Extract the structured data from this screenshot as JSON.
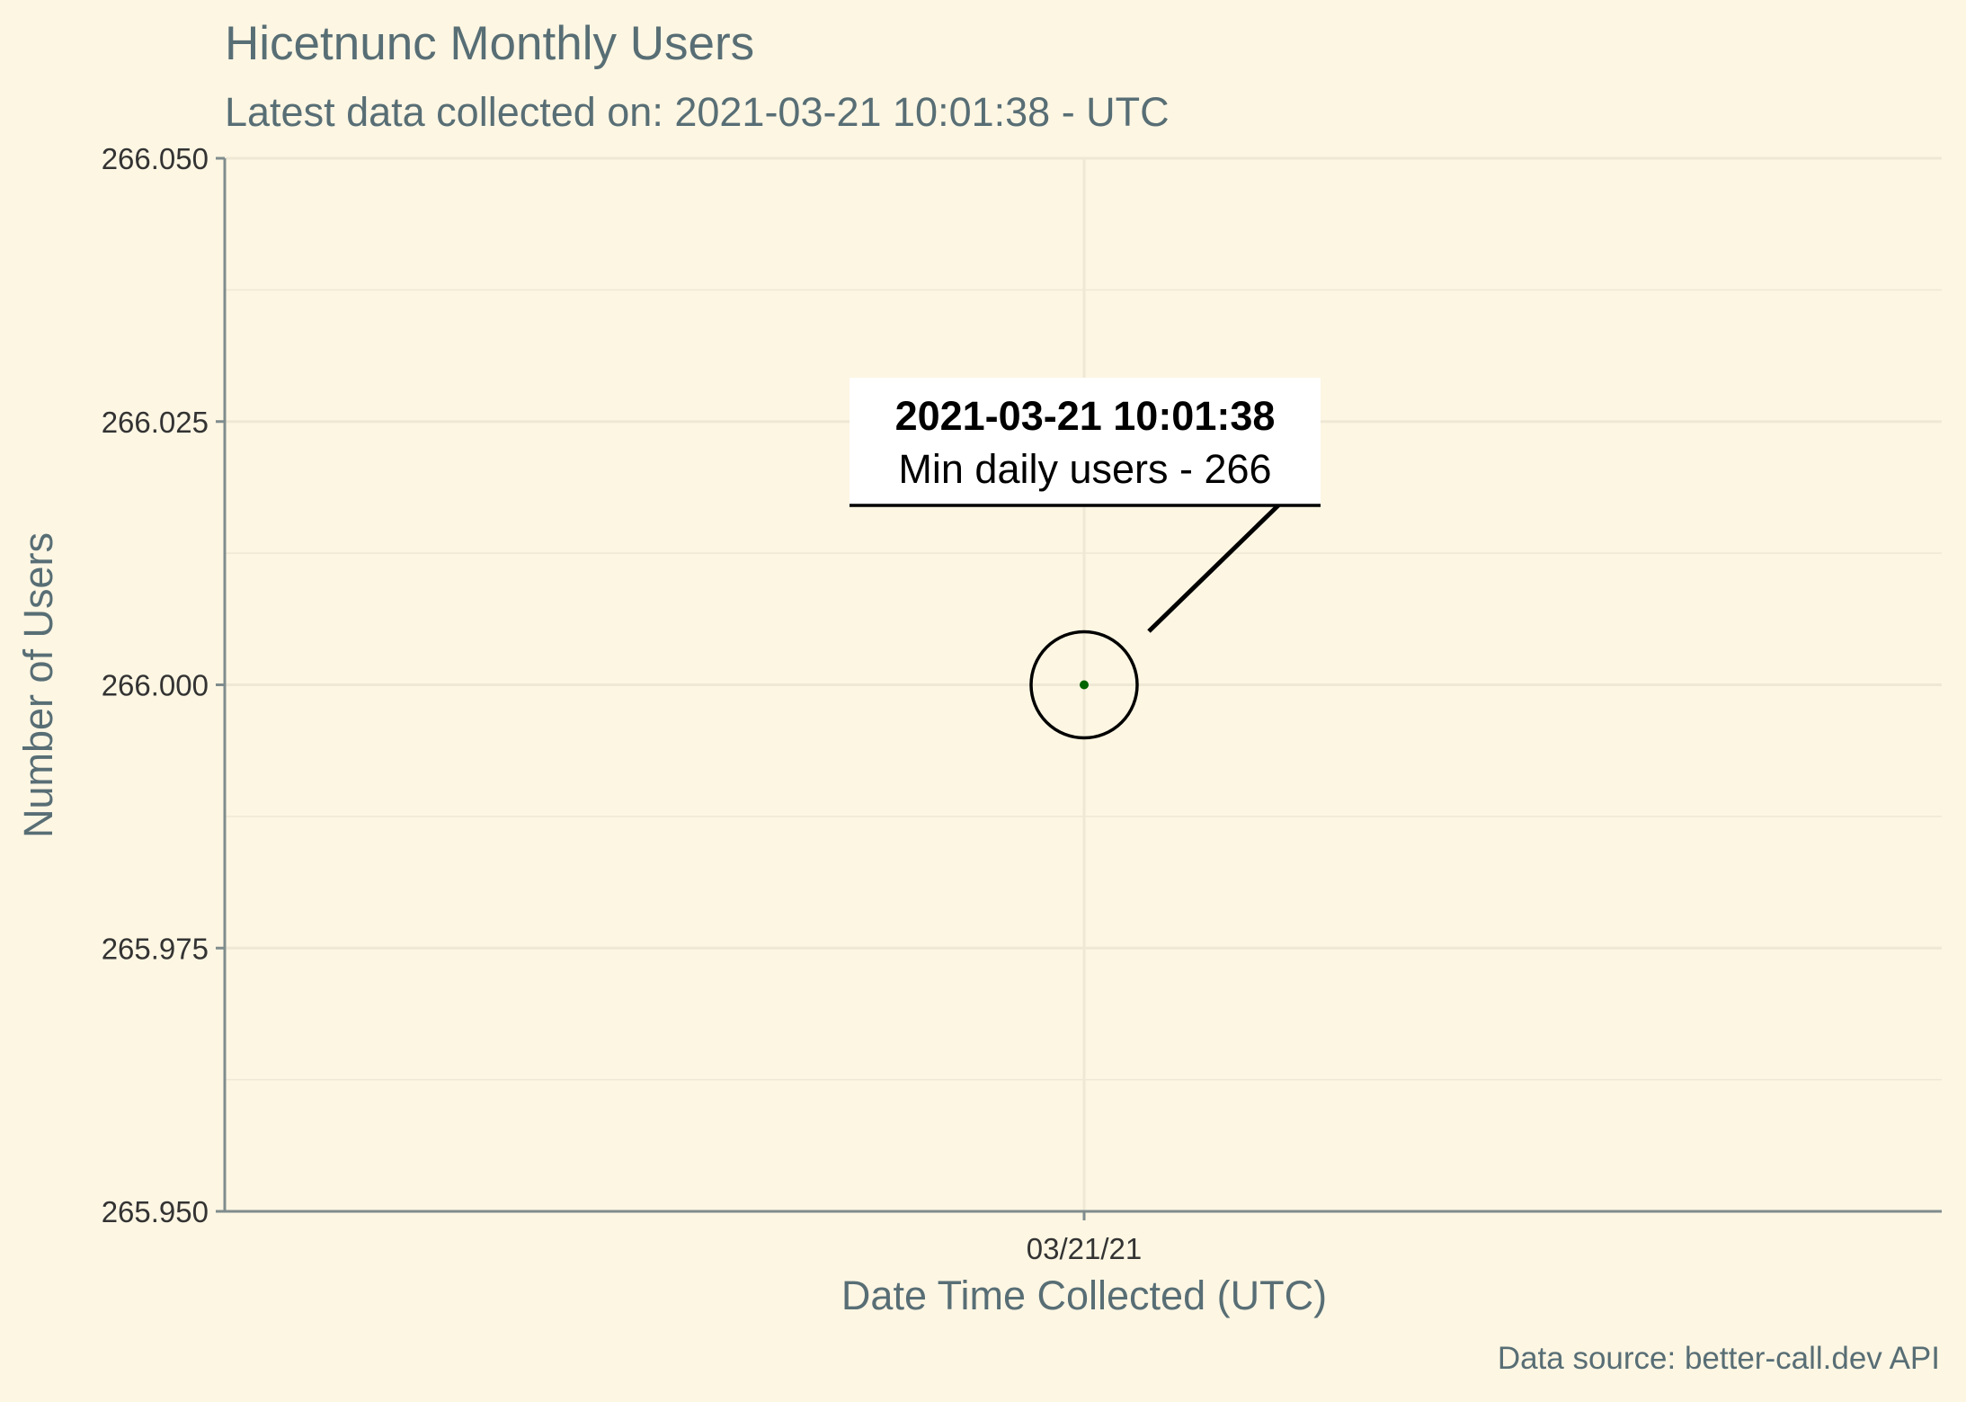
{
  "chart_data": {
    "type": "scatter",
    "title": "Hicetnunc Monthly Users",
    "subtitle": "Latest data collected on: 2021-03-21 10:01:38  - UTC",
    "xlabel": "Date Time Collected (UTC)",
    "ylabel": "Number of Users",
    "caption": "Data source: better-call.dev API",
    "x_tick_labels": [
      "03/21/21"
    ],
    "y_ticks": [
      265.95,
      265.975,
      266.0,
      266.025,
      266.05
    ],
    "y_tick_labels": [
      "265.950",
      "265.975",
      "266.000",
      "266.025",
      "266.050"
    ],
    "ylim": [
      265.95,
      266.05
    ],
    "points": [
      {
        "x": "2021-03-21 10:01:38",
        "y": 266
      }
    ],
    "annotation": {
      "title": "2021-03-21 10:01:38",
      "text": "Min daily users - 266"
    },
    "grid": true,
    "colors": {
      "background": "#FDF6E3",
      "point": "#006400",
      "text": "#586E75",
      "grid": "#EEE8D5",
      "axis": "#7F8C8D"
    }
  }
}
